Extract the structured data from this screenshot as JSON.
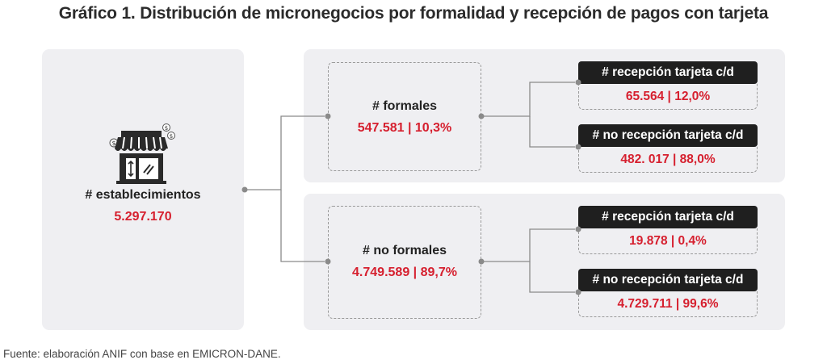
{
  "title": "Gráfico 1. Distribución de micronegocios por formalidad y recepción de pagos con tarjeta",
  "root": {
    "icon": "storefront-icon",
    "label": "# establecimientos",
    "value": "5.297.170"
  },
  "formales": {
    "label": "# formales",
    "value": "547.581 | 10,3%",
    "children": [
      {
        "label": "# recepción tarjeta c/d",
        "value": "65.564 | 12,0%"
      },
      {
        "label": "# no recepción tarjeta c/d",
        "value": "482. 017 | 88,0%"
      }
    ]
  },
  "no_formales": {
    "label": "# no formales",
    "value": "4.749.589 | 89,7%",
    "children": [
      {
        "label": "# recepción tarjeta c/d",
        "value": "19.878 | 0,4%"
      },
      {
        "label": "# no recepción tarjeta c/d",
        "value": "4.729.711  | 99,6%"
      }
    ]
  },
  "source": "Fuente: elaboración ANIF con base en EMICRON-DANE.",
  "colors": {
    "accent_red": "#d6202f",
    "panel_bg": "#efeff2",
    "label_bg": "#1f1f1f",
    "connector": "#8a8a8a"
  }
}
